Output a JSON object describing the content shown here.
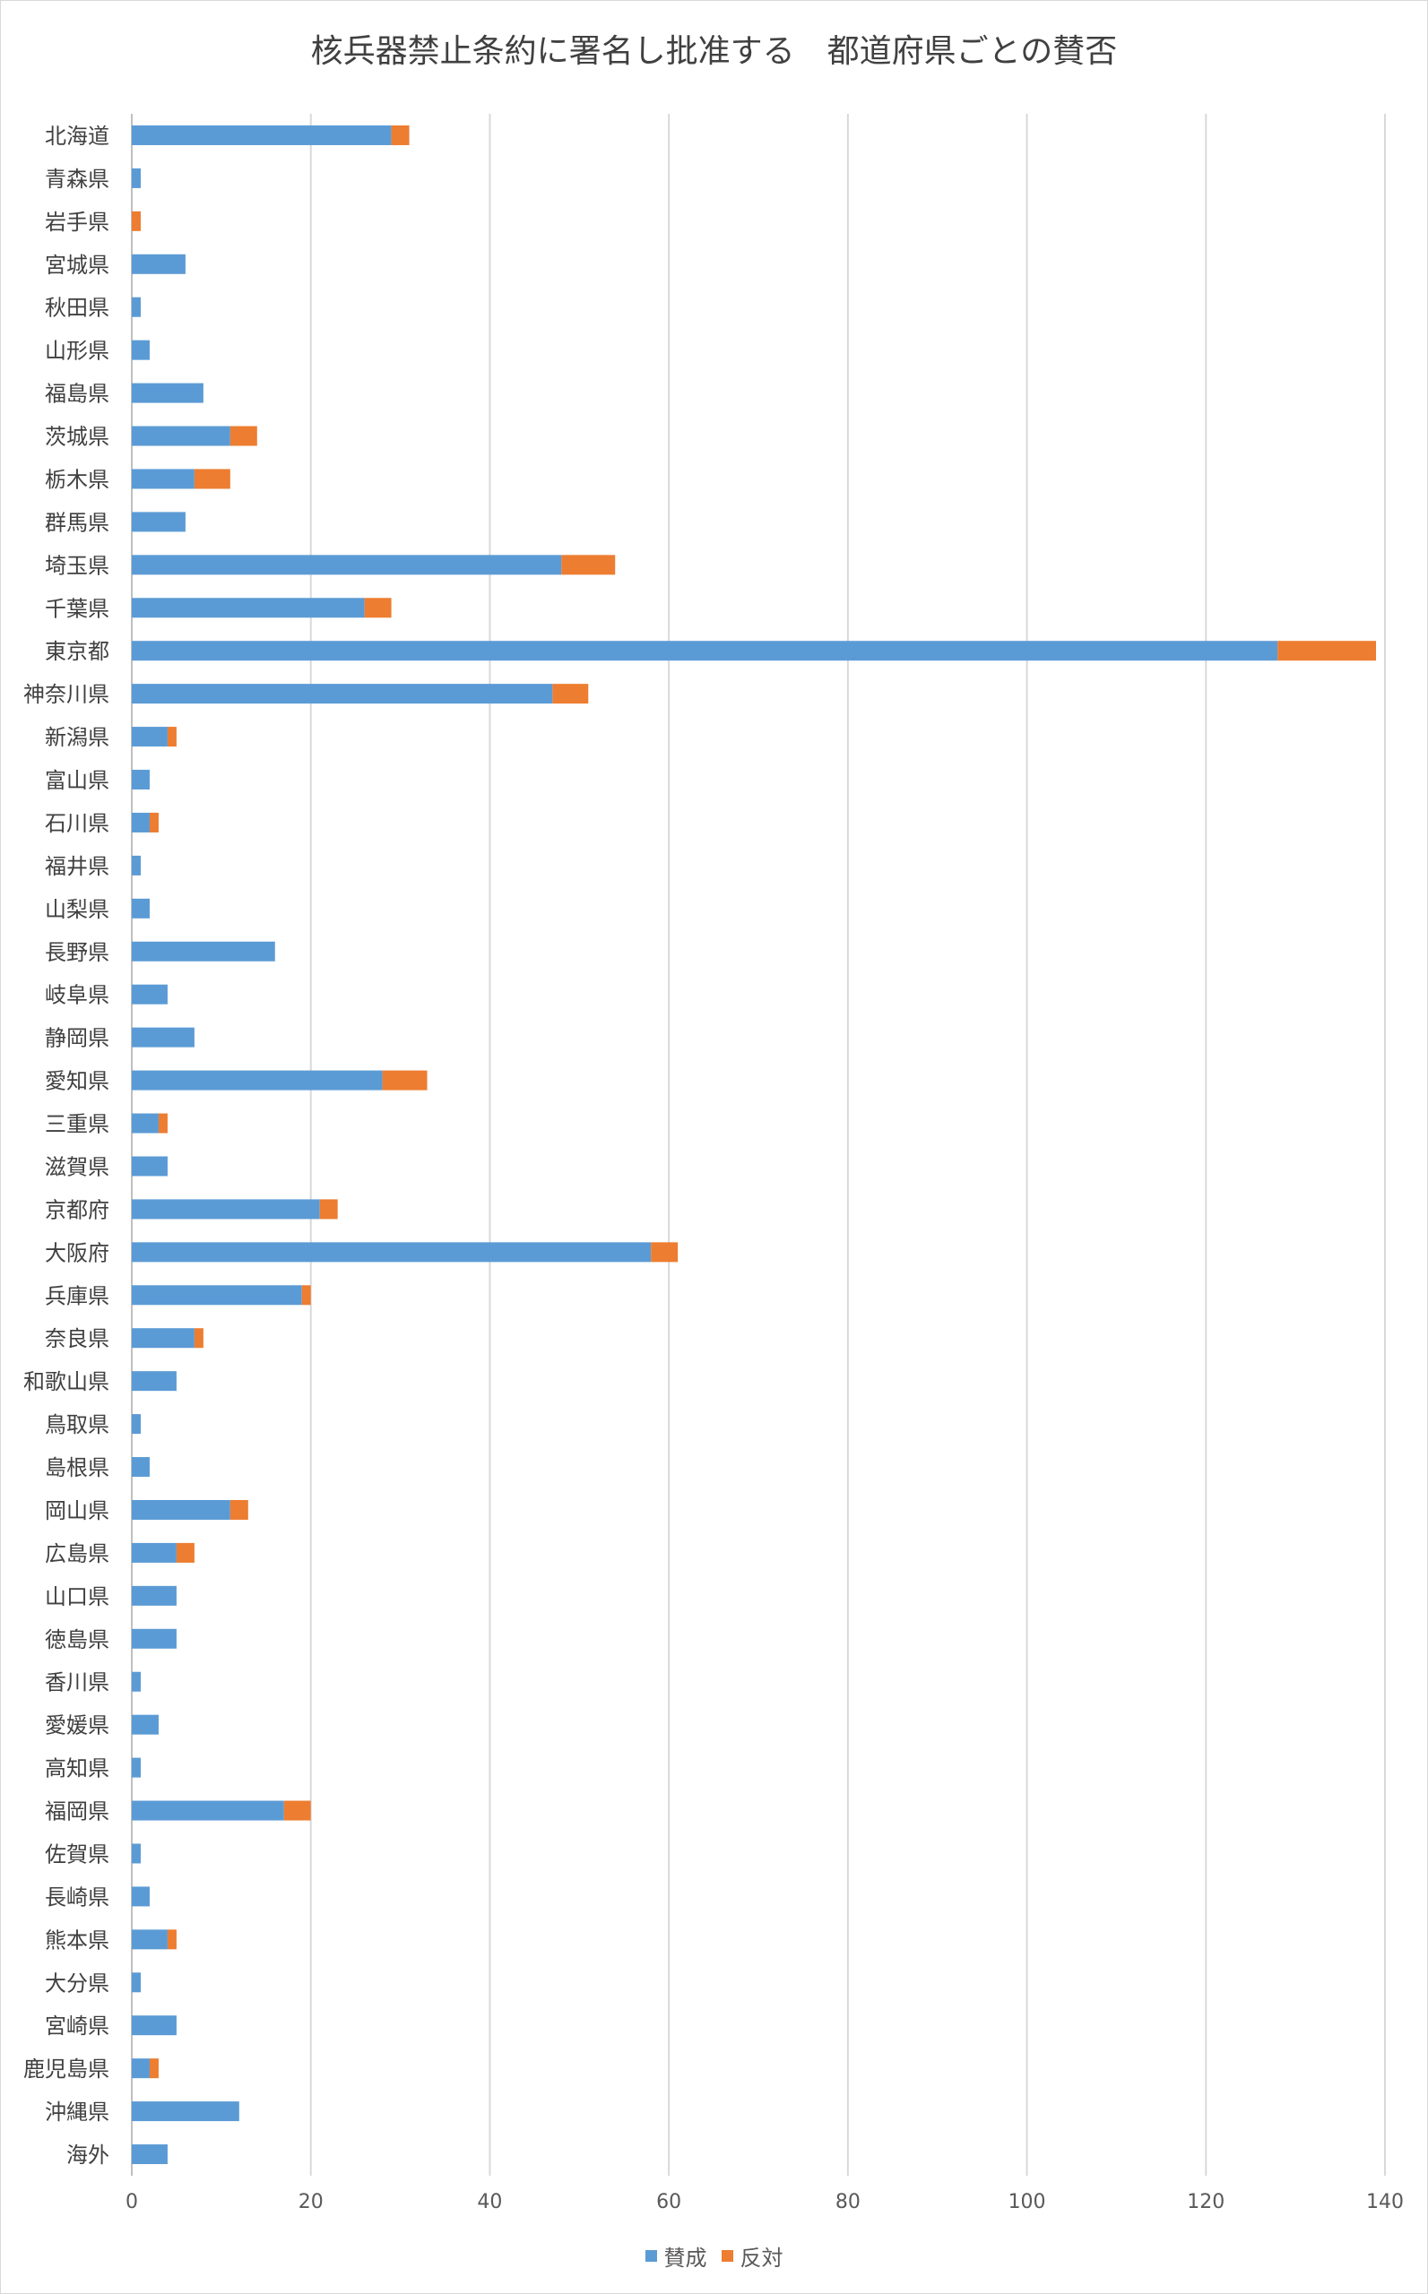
{
  "chart_data": {
    "type": "bar",
    "orientation": "horizontal",
    "stacked": true,
    "title": "核兵器禁止条約に署名し批准する　都道府県ごとの賛否",
    "xlabel": "",
    "ylabel": "",
    "xlim": [
      0,
      140
    ],
    "xticks": [
      0,
      20,
      40,
      60,
      80,
      100,
      120,
      140
    ],
    "grid": true,
    "legend_position": "bottom",
    "categories": [
      "北海道",
      "青森県",
      "岩手県",
      "宮城県",
      "秋田県",
      "山形県",
      "福島県",
      "茨城県",
      "栃木県",
      "群馬県",
      "埼玉県",
      "千葉県",
      "東京都",
      "神奈川県",
      "新潟県",
      "富山県",
      "石川県",
      "福井県",
      "山梨県",
      "長野県",
      "岐阜県",
      "静岡県",
      "愛知県",
      "三重県",
      "滋賀県",
      "京都府",
      "大阪府",
      "兵庫県",
      "奈良県",
      "和歌山県",
      "鳥取県",
      "島根県",
      "岡山県",
      "広島県",
      "山口県",
      "徳島県",
      "香川県",
      "愛媛県",
      "高知県",
      "福岡県",
      "佐賀県",
      "長崎県",
      "熊本県",
      "大分県",
      "宮崎県",
      "鹿児島県",
      "沖縄県",
      "海外"
    ],
    "series": [
      {
        "name": "賛成",
        "color": "#5b9bd5",
        "values": [
          29,
          1,
          0,
          6,
          1,
          2,
          8,
          11,
          7,
          6,
          48,
          26,
          128,
          47,
          4,
          2,
          2,
          1,
          2,
          16,
          4,
          7,
          28,
          3,
          4,
          21,
          58,
          19,
          7,
          5,
          1,
          2,
          11,
          5,
          5,
          5,
          1,
          3,
          1,
          17,
          1,
          2,
          4,
          1,
          5,
          2,
          12,
          4
        ]
      },
      {
        "name": "反対",
        "color": "#ed7d31",
        "values": [
          2,
          0,
          1,
          0,
          0,
          0,
          0,
          3,
          4,
          0,
          6,
          3,
          11,
          4,
          1,
          0,
          1,
          0,
          0,
          0,
          0,
          0,
          5,
          1,
          0,
          2,
          3,
          1,
          1,
          0,
          0,
          0,
          2,
          2,
          0,
          0,
          0,
          0,
          0,
          3,
          0,
          0,
          1,
          0,
          0,
          1,
          0,
          0
        ]
      }
    ]
  }
}
